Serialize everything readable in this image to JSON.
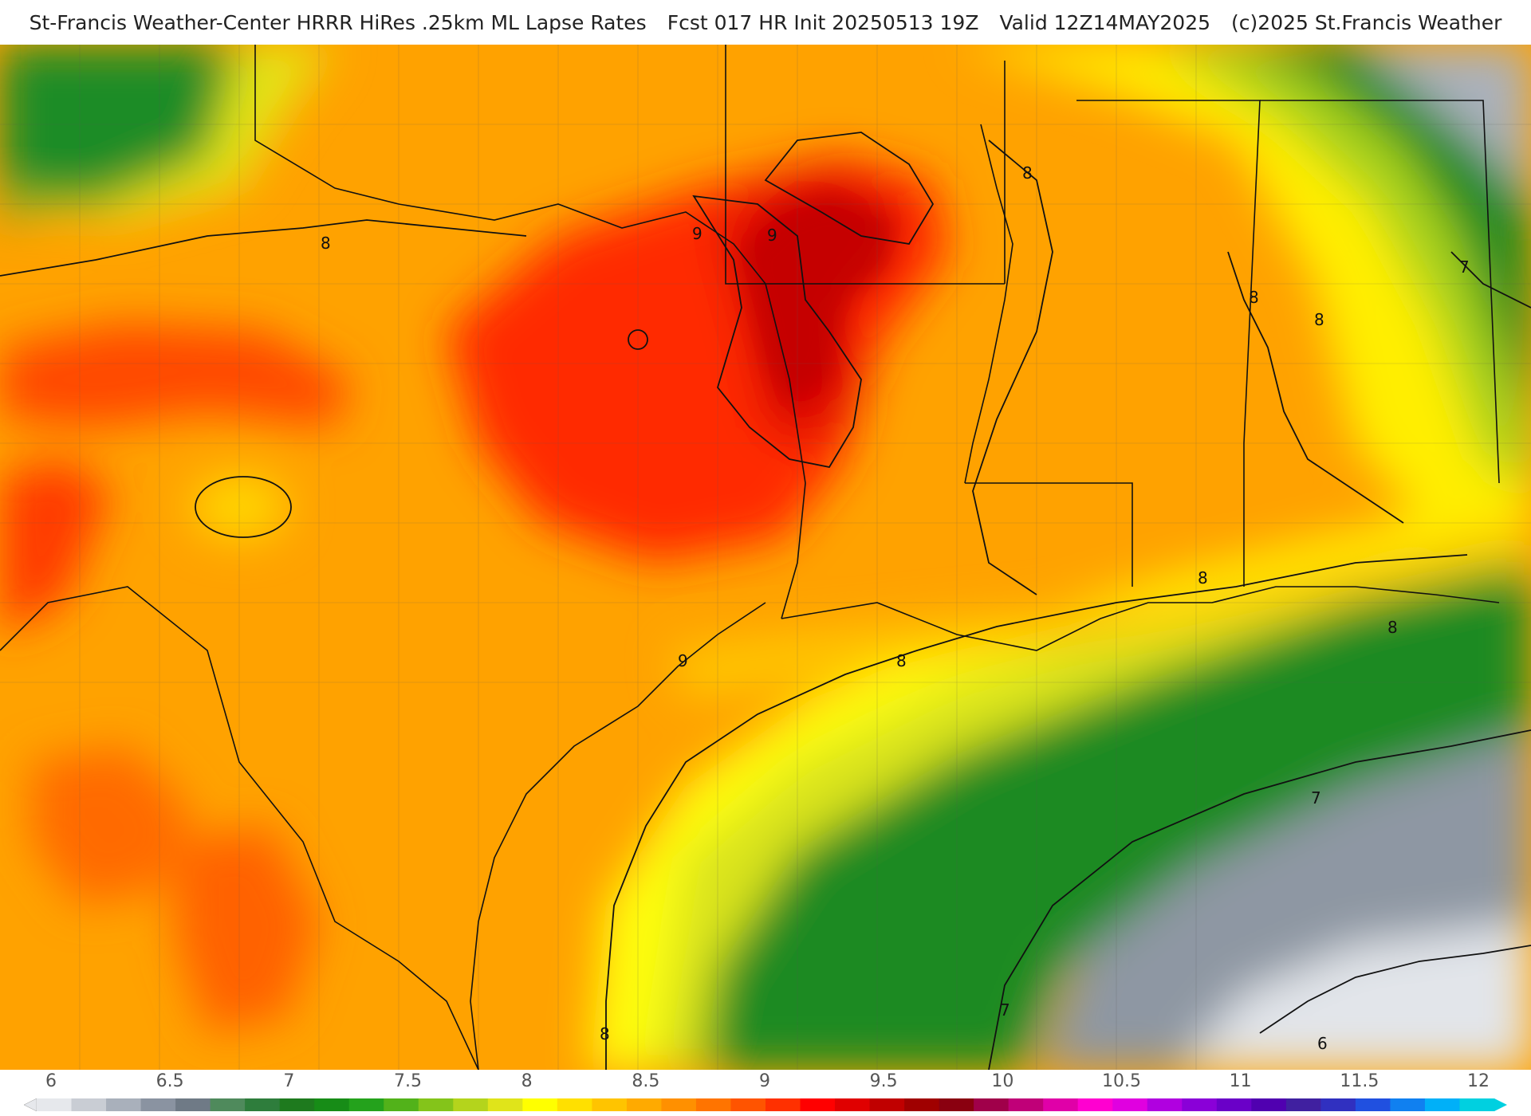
{
  "title": {
    "main": "St-Francis Weather-Center HRRR HiRes .25km ML Lapse Rates",
    "forecast": "Fcst 017 HR Init 20250513 19Z",
    "valid": "Valid 12Z14MAY2025",
    "copyright": "(c)2025 St.Francis Weather"
  },
  "map": {
    "contour_labels": [
      "8",
      "9",
      "9",
      "8",
      "8",
      "8",
      "7",
      "8",
      "8",
      "8",
      "9",
      "8",
      "7",
      "7",
      "6"
    ]
  },
  "colorbar": {
    "tick_labels": [
      "6",
      "6.5",
      "7",
      "7.5",
      "8",
      "8.5",
      "9",
      "9.5",
      "10",
      "10.5",
      "11",
      "11.5",
      "12"
    ],
    "range": [
      6,
      12
    ],
    "colors": [
      "#e6e8ec",
      "#c9cdd4",
      "#a9b0bb",
      "#8a93a1",
      "#6f7a86",
      "#4f8a5c",
      "#2e7d3c",
      "#1e7a1e",
      "#178c17",
      "#24a21c",
      "#52b21a",
      "#84c41a",
      "#b4d41c",
      "#e0e41a",
      "#ffff00",
      "#ffe000",
      "#ffc400",
      "#ffaa00",
      "#ff9000",
      "#ff7400",
      "#ff5400",
      "#ff3000",
      "#ff0000",
      "#e00000",
      "#c00000",
      "#a00000",
      "#8a0010",
      "#a0004a",
      "#c00078",
      "#e000a8",
      "#ff00d0",
      "#e000e0",
      "#b000e0",
      "#8a00d8",
      "#6a00c8",
      "#5000b0",
      "#4020a0",
      "#3030c0",
      "#2050e0",
      "#1080f0",
      "#00b0f8",
      "#00d0e0"
    ]
  }
}
